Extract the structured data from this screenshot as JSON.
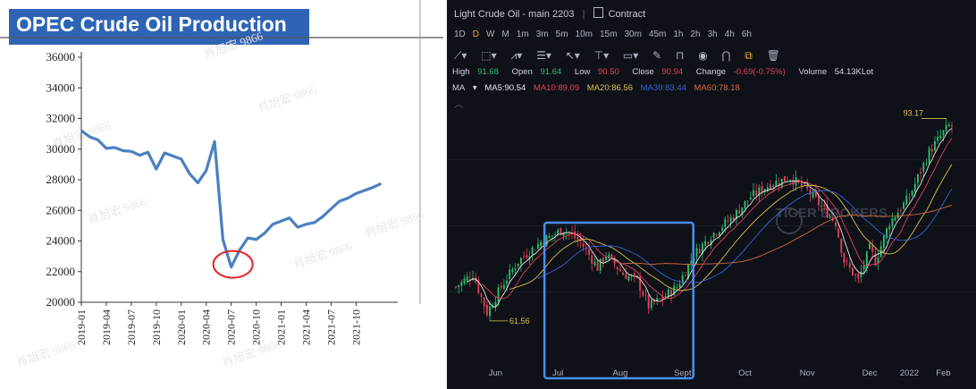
{
  "left": {
    "title": "OPEC Crude Oil Production",
    "watermark": "肖旭宏 9866",
    "chart_data": {
      "type": "line",
      "title": "OPEC Crude Oil Production",
      "ylim": [
        20000,
        36000
      ],
      "yticks": [
        "36000",
        "34000",
        "32000",
        "30000",
        "28000",
        "26000",
        "24000",
        "22000",
        "20000"
      ],
      "xticks": [
        "2019-01",
        "2019-04",
        "2019-07",
        "2019-10",
        "2020-01",
        "2020-04",
        "2020-07",
        "2020-10",
        "2021-01",
        "2021-04",
        "2021-07",
        "2021-10"
      ],
      "series": [
        {
          "color": "#4a7fc1",
          "values": [
            31200,
            30800,
            30600,
            30050,
            30100,
            29900,
            29850,
            29600,
            29800,
            28700,
            29750,
            29550,
            29350,
            28400,
            27800,
            28600,
            30500,
            24100,
            22300,
            23400,
            24200,
            24100,
            24500,
            25100,
            25300,
            25500,
            24900,
            25100,
            25200,
            25600,
            26100,
            26600,
            26800,
            27100,
            27300,
            27500,
            27750
          ]
        }
      ],
      "highlight_circle_at_index": 18
    }
  },
  "right": {
    "title": "Light  Crude Oil - main 2203",
    "contract_label": "Contract",
    "timeframes": [
      "1D",
      "D",
      "W",
      "M",
      "1m",
      "3m",
      "5m",
      "10m",
      "15m",
      "30m",
      "45m",
      "1h",
      "2h",
      "3h",
      "4h",
      "6h"
    ],
    "active_timeframe": "D",
    "ohlc": {
      "high_label": "High",
      "high": "91.68",
      "open_label": "Open",
      "open": "91.64",
      "low_label": "Low",
      "low": "90.50",
      "close_label": "Close",
      "close": "90.94",
      "change_label": "Change",
      "change": "-0.69(-0.75%)",
      "volume_label": "Volume",
      "volume": "54.13KLot"
    },
    "ma": {
      "label": "MA",
      "ma5": "MA5:90.54",
      "ma10": "MA10:89.09",
      "ma20": "MA20:86.56",
      "ma30": "MA30:83.44",
      "ma60": "MA60:78.18"
    },
    "colors": {
      "up": "#2ebd6b",
      "down": "#e0405a",
      "ma5": "#e8e8e8",
      "ma10": "#e0405a",
      "ma20": "#d7c24b",
      "ma30": "#3465d9",
      "ma60": "#d06a40",
      "highlight": "#4a8ef0"
    },
    "watermark": "TIGER BROKERS",
    "annotations": {
      "max_label": "93.17",
      "min_label": "61.56"
    },
    "chart_data": {
      "type": "candlestick",
      "x_months": [
        "Jun",
        "Jul",
        "Aug",
        "Sept",
        "Oct",
        "Nov",
        "Dec",
        "2022",
        "Feb"
      ],
      "anchors": [
        [
          0,
          66
        ],
        [
          6,
          68
        ],
        [
          11,
          62
        ],
        [
          16,
          66
        ],
        [
          22,
          70
        ],
        [
          30,
          73
        ],
        [
          38,
          75
        ],
        [
          44,
          73
        ],
        [
          50,
          69
        ],
        [
          53,
          71
        ],
        [
          59,
          68
        ],
        [
          64,
          67
        ],
        [
          68,
          63
        ],
        [
          72,
          64
        ],
        [
          78,
          66
        ],
        [
          84,
          71
        ],
        [
          90,
          74
        ],
        [
          98,
          77
        ],
        [
          104,
          80
        ],
        [
          111,
          82
        ],
        [
          118,
          83
        ],
        [
          124,
          81
        ],
        [
          130,
          78
        ],
        [
          134,
          76
        ],
        [
          137,
          70
        ],
        [
          142,
          67
        ],
        [
          146,
          72
        ],
        [
          148,
          70
        ],
        [
          153,
          76
        ],
        [
          160,
          80
        ],
        [
          167,
          87
        ],
        [
          172,
          90
        ],
        [
          174,
          91
        ]
      ],
      "highlight_range": [
        "Jul",
        "Sept"
      ]
    }
  }
}
